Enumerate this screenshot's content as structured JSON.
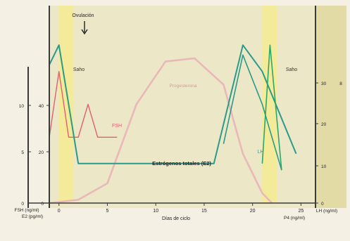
{
  "colors": {
    "page_bg": "#f4f1e4",
    "plot_bg": "#ece7c6",
    "right_panel_bg": "#e3dba6",
    "fertile_band": "#f3eb9a",
    "axis": "#3a3a3a",
    "progesterone": "#e9b8b8",
    "lh_fsh": "#e06070",
    "estrogen": "#2a9a8a",
    "e2": "#2aa86c",
    "ovulation_marker": "#222222"
  },
  "icons": {
    "ovulation_marker": "arrow-down-icon"
  },
  "chart_data": {
    "type": "line",
    "title": "",
    "annotations": {
      "ovulation": "Ovulación",
      "fertile_left": "Saho",
      "fertile_right": "Saho"
    },
    "xlabel": "Días de ciclo",
    "x_ticks": [
      "0",
      "5",
      "10",
      "15",
      "20",
      "25"
    ],
    "xlim": [
      -1,
      26.5
    ],
    "fertile_windows": [
      [
        0,
        1.5
      ],
      [
        21,
        22.5
      ]
    ],
    "ovulation_day": 1,
    "left_axis": {
      "tick_labels_outer": [
        "0",
        "5",
        "10"
      ],
      "tick_labels_inner": [
        "0",
        "20",
        "40"
      ],
      "label_outer": "FSH (ng/ml)",
      "label_inner": "E2 (pg/ml)"
    },
    "right_axis": {
      "tick_labels": [
        "0",
        "10",
        "20",
        "30"
      ],
      "tick_labels_outer": [
        "8"
      ],
      "label_inner": "LH (ng/ml)",
      "label_outer": "P4 (ng/ml)"
    },
    "ylim": [
      0,
      60
    ],
    "series": [
      {
        "name": "Progesterona",
        "x": [
          -1,
          2,
          5,
          8,
          11,
          14,
          17,
          19,
          21,
          22
        ],
        "y": [
          0,
          1,
          6,
          30,
          43,
          44,
          36,
          15,
          3,
          0
        ]
      },
      {
        "name": "FSH",
        "x": [
          -1,
          0,
          1,
          2,
          3,
          4,
          5,
          6
        ],
        "y": [
          20,
          40,
          20,
          20,
          30,
          20,
          20,
          20
        ]
      },
      {
        "name": "Estrógenos totales (E2)",
        "x": [
          -1,
          0,
          2,
          4,
          16,
          19,
          21,
          24.5
        ],
        "y": [
          42,
          48,
          12,
          12,
          12,
          48,
          40,
          15
        ]
      },
      {
        "name": "LH",
        "x": [
          17,
          19,
          21,
          23
        ],
        "y": [
          18,
          45,
          30,
          10
        ]
      },
      {
        "name": "",
        "x": [
          21,
          21.8,
          23
        ],
        "y": [
          12,
          48,
          10
        ]
      }
    ]
  },
  "caption": ""
}
